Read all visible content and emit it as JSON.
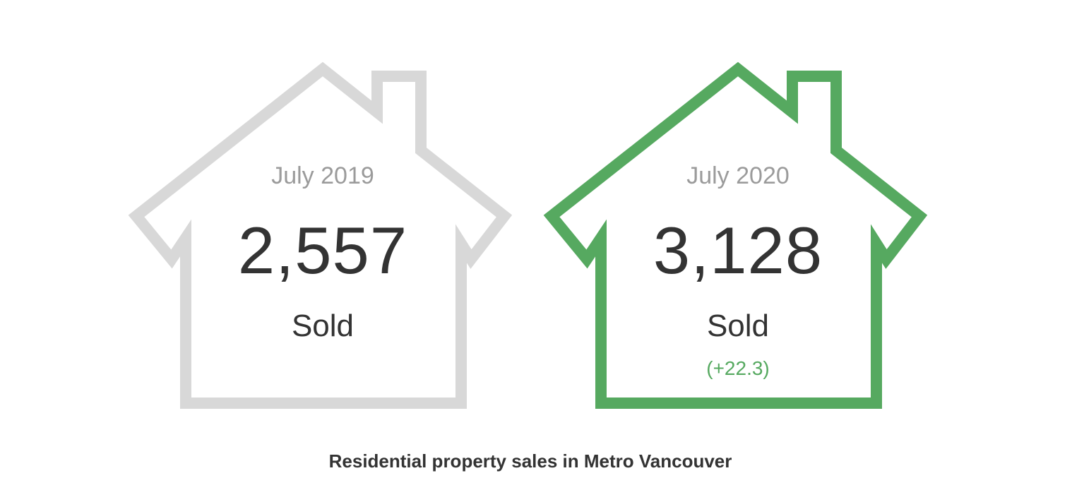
{
  "colors": {
    "inactive_outline": "#d8d8d8",
    "active_outline": "#56a960",
    "change_text": "#56a960",
    "period_text": "#9b9b9b",
    "value_text": "#333333"
  },
  "cards": [
    {
      "period": "July 2019",
      "count": "2,557",
      "label": "Sold",
      "icon": "house-outline-icon"
    },
    {
      "period": "July 2020",
      "count": "3,128",
      "label": "Sold",
      "change": "(+22.3)",
      "icon": "house-outline-icon"
    }
  ],
  "caption": "Residential property sales in Metro Vancouver"
}
